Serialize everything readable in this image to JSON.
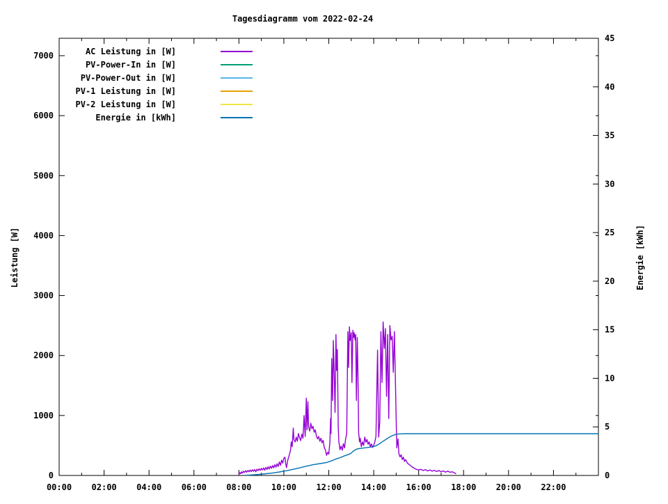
{
  "title": "Tagesdiagramm vom 2022-02-24",
  "axes": {
    "ylabel_left": "Leistung [W]",
    "ylabel_right": "Energie [kWh]"
  },
  "chart_data": {
    "type": "line",
    "title": "Tagesdiagramm vom 2022-02-24",
    "xlabel": "",
    "ylabel_left": "Leistung [W]",
    "ylabel_right": "Energie [kWh]",
    "x_range_hours": [
      0,
      24
    ],
    "y_left_range": [
      0,
      7290
    ],
    "y_right_range": [
      0,
      45
    ],
    "grid": false,
    "legend_position": "top-left-inside",
    "x_tick_hours": [
      0,
      2,
      4,
      6,
      8,
      10,
      12,
      14,
      16,
      18,
      20,
      22
    ],
    "x_tick_labels": [
      "00:00",
      "02:00",
      "04:00",
      "06:00",
      "08:00",
      "10:00",
      "12:00",
      "14:00",
      "16:00",
      "18:00",
      "20:00",
      "22:00"
    ],
    "x_minor_tick_every_hours": 1,
    "y_left_ticks": [
      0,
      1000,
      2000,
      3000,
      4000,
      5000,
      6000,
      7000
    ],
    "y_right_ticks": [
      0,
      5,
      10,
      15,
      20,
      25,
      30,
      35,
      40,
      45
    ],
    "series": [
      {
        "name": "AC Leistung in [W]",
        "color": "#9400D3",
        "axis": "left",
        "points": [
          [
            8.0,
            20
          ],
          [
            8.05,
            45
          ],
          [
            8.08,
            30
          ],
          [
            8.12,
            60
          ],
          [
            8.15,
            40
          ],
          [
            8.2,
            70
          ],
          [
            8.25,
            50
          ],
          [
            8.3,
            80
          ],
          [
            8.35,
            55
          ],
          [
            8.4,
            85
          ],
          [
            8.45,
            60
          ],
          [
            8.5,
            90
          ],
          [
            8.55,
            65
          ],
          [
            8.6,
            95
          ],
          [
            8.65,
            70
          ],
          [
            8.7,
            100
          ],
          [
            8.75,
            62
          ],
          [
            8.8,
            105
          ],
          [
            8.85,
            80
          ],
          [
            8.9,
            110
          ],
          [
            8.95,
            85
          ],
          [
            9.0,
            118
          ],
          [
            9.05,
            92
          ],
          [
            9.1,
            125
          ],
          [
            9.15,
            88
          ],
          [
            9.2,
            135
          ],
          [
            9.25,
            100
          ],
          [
            9.3,
            145
          ],
          [
            9.35,
            108
          ],
          [
            9.4,
            155
          ],
          [
            9.45,
            118
          ],
          [
            9.5,
            165
          ],
          [
            9.55,
            128
          ],
          [
            9.6,
            180
          ],
          [
            9.65,
            138
          ],
          [
            9.7,
            195
          ],
          [
            9.75,
            150
          ],
          [
            9.8,
            225
          ],
          [
            9.85,
            170
          ],
          [
            9.9,
            255
          ],
          [
            9.95,
            205
          ],
          [
            10.0,
            285
          ],
          [
            10.05,
            305
          ],
          [
            10.08,
            200
          ],
          [
            10.12,
            130
          ],
          [
            10.17,
            250
          ],
          [
            10.22,
            310
          ],
          [
            10.27,
            380
          ],
          [
            10.3,
            430
          ],
          [
            10.33,
            560
          ],
          [
            10.37,
            480
          ],
          [
            10.42,
            790
          ],
          [
            10.45,
            600
          ],
          [
            10.5,
            560
          ],
          [
            10.55,
            640
          ],
          [
            10.6,
            570
          ],
          [
            10.65,
            700
          ],
          [
            10.7,
            630
          ],
          [
            10.75,
            580
          ],
          [
            10.8,
            690
          ],
          [
            10.85,
            620
          ],
          [
            10.9,
            1000
          ],
          [
            10.95,
            650
          ],
          [
            11.0,
            1290
          ],
          [
            11.03,
            760
          ],
          [
            11.07,
            1230
          ],
          [
            11.1,
            820
          ],
          [
            11.15,
            740
          ],
          [
            11.2,
            870
          ],
          [
            11.25,
            780
          ],
          [
            11.3,
            820
          ],
          [
            11.35,
            720
          ],
          [
            11.4,
            760
          ],
          [
            11.45,
            660
          ],
          [
            11.5,
            610
          ],
          [
            11.55,
            650
          ],
          [
            11.6,
            570
          ],
          [
            11.65,
            620
          ],
          [
            11.7,
            545
          ],
          [
            11.75,
            585
          ],
          [
            11.8,
            465
          ],
          [
            11.85,
            425
          ],
          [
            11.9,
            335
          ],
          [
            11.95,
            385
          ],
          [
            12.0,
            355
          ],
          [
            12.05,
            560
          ],
          [
            12.08,
            950
          ],
          [
            12.1,
            700
          ],
          [
            12.13,
            1950
          ],
          [
            12.17,
            1250
          ],
          [
            12.2,
            2250
          ],
          [
            12.25,
            1550
          ],
          [
            12.28,
            1050
          ],
          [
            12.32,
            2350
          ],
          [
            12.35,
            1750
          ],
          [
            12.38,
            2100
          ],
          [
            12.42,
            820
          ],
          [
            12.45,
            560
          ],
          [
            12.5,
            430
          ],
          [
            12.55,
            490
          ],
          [
            12.6,
            420
          ],
          [
            12.65,
            530
          ],
          [
            12.7,
            460
          ],
          [
            12.75,
            610
          ],
          [
            12.8,
            700
          ],
          [
            12.85,
            2400
          ],
          [
            12.88,
            1800
          ],
          [
            12.92,
            2480
          ],
          [
            12.95,
            2250
          ],
          [
            13.0,
            2380
          ],
          [
            13.03,
            1550
          ],
          [
            13.07,
            2420
          ],
          [
            13.1,
            2300
          ],
          [
            13.13,
            2380
          ],
          [
            13.17,
            2260
          ],
          [
            13.2,
            2350
          ],
          [
            13.23,
            1250
          ],
          [
            13.27,
            2300
          ],
          [
            13.3,
            1650
          ],
          [
            13.33,
            720
          ],
          [
            13.37,
            560
          ],
          [
            13.4,
            620
          ],
          [
            13.45,
            480
          ],
          [
            13.5,
            560
          ],
          [
            13.55,
            500
          ],
          [
            13.6,
            640
          ],
          [
            13.65,
            555
          ],
          [
            13.7,
            600
          ],
          [
            13.75,
            520
          ],
          [
            13.8,
            560
          ],
          [
            13.85,
            480
          ],
          [
            13.9,
            525
          ],
          [
            13.95,
            465
          ],
          [
            14.0,
            505
          ],
          [
            14.05,
            560
          ],
          [
            14.1,
            650
          ],
          [
            14.17,
            2090
          ],
          [
            14.22,
            640
          ],
          [
            14.27,
            900
          ],
          [
            14.32,
            2400
          ],
          [
            14.37,
            1550
          ],
          [
            14.42,
            2560
          ],
          [
            14.47,
            2120
          ],
          [
            14.52,
            2450
          ],
          [
            14.57,
            1320
          ],
          [
            14.62,
            2350
          ],
          [
            14.67,
            950
          ],
          [
            14.72,
            2500
          ],
          [
            14.77,
            2260
          ],
          [
            14.82,
            2320
          ],
          [
            14.87,
            1720
          ],
          [
            14.92,
            2400
          ],
          [
            14.97,
            1500
          ],
          [
            15.0,
            900
          ],
          [
            15.03,
            460
          ],
          [
            15.08,
            610
          ],
          [
            15.12,
            360
          ],
          [
            15.17,
            310
          ],
          [
            15.22,
            345
          ],
          [
            15.27,
            265
          ],
          [
            15.32,
            305
          ],
          [
            15.37,
            235
          ],
          [
            15.42,
            265
          ],
          [
            15.5,
            205
          ],
          [
            15.6,
            175
          ],
          [
            15.7,
            145
          ],
          [
            15.8,
            122
          ],
          [
            15.9,
            102
          ],
          [
            16.0,
            92
          ],
          [
            16.1,
            102
          ],
          [
            16.2,
            82
          ],
          [
            16.3,
            96
          ],
          [
            16.4,
            76
          ],
          [
            16.5,
            92
          ],
          [
            16.6,
            72
          ],
          [
            16.7,
            86
          ],
          [
            16.8,
            66
          ],
          [
            16.9,
            82
          ],
          [
            17.0,
            62
          ],
          [
            17.1,
            76
          ],
          [
            17.2,
            56
          ],
          [
            17.3,
            72
          ],
          [
            17.4,
            52
          ],
          [
            17.5,
            62
          ],
          [
            17.6,
            42
          ],
          [
            17.65,
            30
          ]
        ]
      },
      {
        "name": "PV-Power-In in [W]",
        "color": "#009E73",
        "axis": "left",
        "points": []
      },
      {
        "name": "PV-Power-Out in [W]",
        "color": "#56B4E9",
        "axis": "left",
        "points": []
      },
      {
        "name": "PV-1 Leistung in [W]",
        "color": "#E69F00",
        "axis": "left",
        "points": []
      },
      {
        "name": "PV-2 Leistung in [W]",
        "color": "#F0E442",
        "axis": "left",
        "points": []
      },
      {
        "name": "Energie in [kWh]",
        "color": "#0072B2",
        "axis": "right",
        "points": [
          [
            8.3,
            0.02
          ],
          [
            8.6,
            0.06
          ],
          [
            8.9,
            0.11
          ],
          [
            9.2,
            0.18
          ],
          [
            9.5,
            0.26
          ],
          [
            9.8,
            0.36
          ],
          [
            10.1,
            0.48
          ],
          [
            10.4,
            0.62
          ],
          [
            10.7,
            0.78
          ],
          [
            11.0,
            0.95
          ],
          [
            11.3,
            1.1
          ],
          [
            11.6,
            1.22
          ],
          [
            11.9,
            1.33
          ],
          [
            12.1,
            1.48
          ],
          [
            12.3,
            1.68
          ],
          [
            12.5,
            1.83
          ],
          [
            12.7,
            2.02
          ],
          [
            12.9,
            2.18
          ],
          [
            13.0,
            2.3
          ],
          [
            13.1,
            2.52
          ],
          [
            13.25,
            2.72
          ],
          [
            13.45,
            2.8
          ],
          [
            13.7,
            2.87
          ],
          [
            13.95,
            2.95
          ],
          [
            14.1,
            3.05
          ],
          [
            14.25,
            3.25
          ],
          [
            14.4,
            3.5
          ],
          [
            14.55,
            3.72
          ],
          [
            14.7,
            3.95
          ],
          [
            14.85,
            4.12
          ],
          [
            15.0,
            4.24
          ],
          [
            15.15,
            4.28
          ],
          [
            15.4,
            4.3
          ],
          [
            16.5,
            4.3
          ],
          [
            24.0,
            4.3
          ]
        ]
      }
    ]
  }
}
